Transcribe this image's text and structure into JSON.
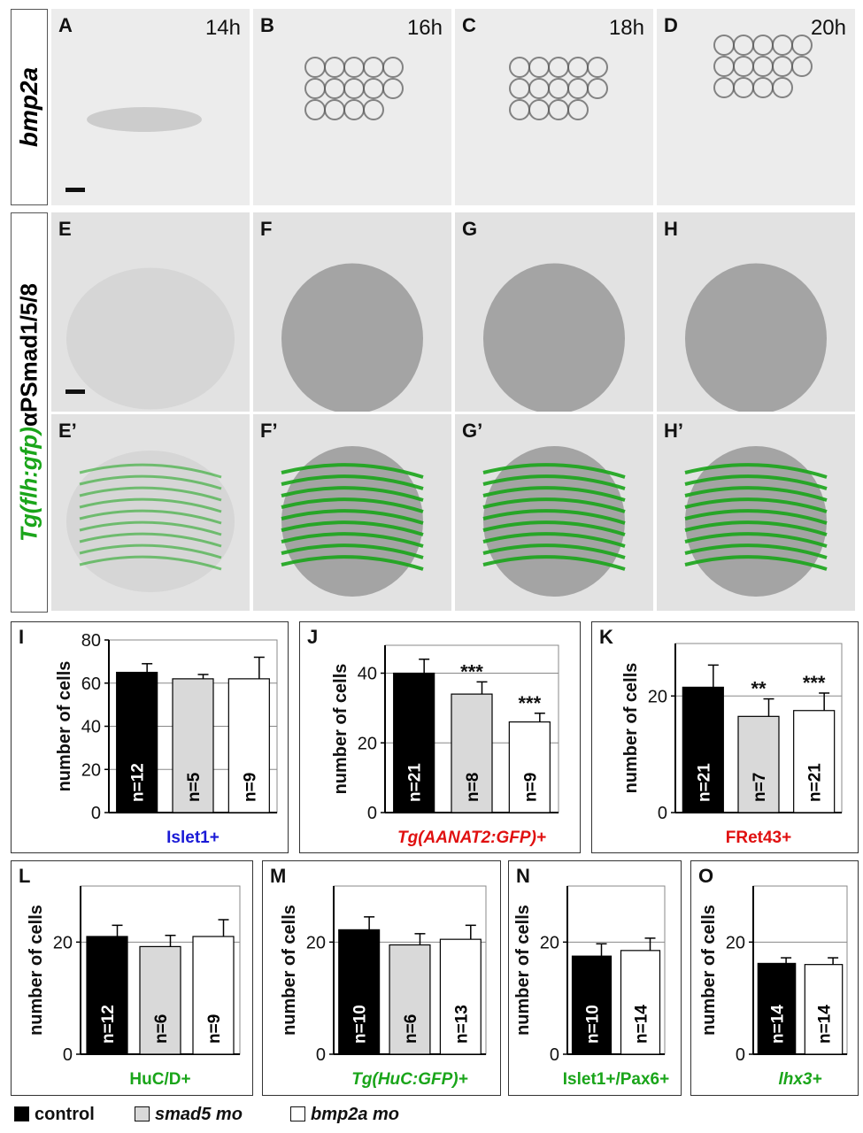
{
  "figure": {
    "row1_label": "bmp2a",
    "row2_label_gfp": "Tg(flh:gfp)",
    "row2_label_alpha": "α",
    "row2_label_ab": "PSmad1/5/8",
    "micro_panels": [
      {
        "letter": "A",
        "time": "14h"
      },
      {
        "letter": "B",
        "time": "16h"
      },
      {
        "letter": "C",
        "time": "18h"
      },
      {
        "letter": "D",
        "time": "20h"
      },
      {
        "letter": "E",
        "time": ""
      },
      {
        "letter": "F",
        "time": ""
      },
      {
        "letter": "G",
        "time": ""
      },
      {
        "letter": "H",
        "time": ""
      },
      {
        "letter": "E’",
        "time": ""
      },
      {
        "letter": "F’",
        "time": ""
      },
      {
        "letter": "G’",
        "time": ""
      },
      {
        "letter": "H’",
        "time": ""
      }
    ],
    "colors": {
      "green": "#1aa51a",
      "blue": "#1a1ad6",
      "red": "#e01010",
      "control": "#000000",
      "smad5": "#d9d9d9",
      "bmp2a": "#ffffff"
    },
    "legend": [
      {
        "label": "control",
        "color": "#000000"
      },
      {
        "label": "smad5 mo",
        "color": "#d9d9d9"
      },
      {
        "label": "bmp2a mo",
        "color": "#ffffff"
      }
    ]
  },
  "chart_data": [
    {
      "panel": "I",
      "type": "bar",
      "ylabel": "number of cells",
      "xlabel": "Islet1+",
      "xlabel_color": "#1a1ad6",
      "xlabel_italic": false,
      "ylim": [
        0,
        80
      ],
      "yticks": [
        0,
        20,
        40,
        60,
        80
      ],
      "gridlines": [
        20,
        40,
        60,
        80
      ],
      "categories": [
        "control",
        "smad5 mo",
        "bmp2a mo"
      ],
      "values": [
        65,
        62,
        62
      ],
      "errors": [
        4,
        2,
        10
      ],
      "n_labels": [
        "n=12",
        "n=5",
        "n=9"
      ],
      "significance": [
        "",
        "",
        ""
      ]
    },
    {
      "panel": "J",
      "type": "bar",
      "ylabel": "number of cells",
      "xlabel": "Tg(AANAT2:GFP)+",
      "xlabel_color": "#e01010",
      "xlabel_italic": true,
      "ylim": [
        0,
        48
      ],
      "yticks": [
        0,
        20,
        40
      ],
      "gridlines": [
        20,
        40
      ],
      "categories": [
        "control",
        "smad5 mo",
        "bmp2a mo"
      ],
      "values": [
        40,
        34,
        26
      ],
      "errors": [
        4,
        3.5,
        2.5
      ],
      "n_labels": [
        "n=21",
        "n=8",
        "n=9"
      ],
      "significance": [
        "",
        "***",
        "***"
      ]
    },
    {
      "panel": "K",
      "type": "bar",
      "ylabel": "number of cells",
      "xlabel": "FRet43+",
      "xlabel_color": "#e01010",
      "xlabel_italic": false,
      "ylim": [
        0,
        29
      ],
      "yticks": [
        0,
        20
      ],
      "gridlines": [
        20
      ],
      "categories": [
        "control",
        "smad5 mo",
        "bmp2a mo"
      ],
      "values": [
        21.5,
        16.5,
        17.5
      ],
      "errors": [
        3.8,
        3,
        3
      ],
      "n_labels": [
        "n=21",
        "n=7",
        "n=21"
      ],
      "significance": [
        "",
        "**",
        "***"
      ]
    },
    {
      "panel": "L",
      "type": "bar",
      "ylabel": "number of cells",
      "xlabel": "HuC/D+",
      "xlabel_color": "#1aa51a",
      "xlabel_italic": false,
      "ylim": [
        0,
        30
      ],
      "yticks": [
        0,
        20
      ],
      "gridlines": [
        20
      ],
      "categories": [
        "control",
        "smad5 mo",
        "bmp2a mo"
      ],
      "values": [
        21,
        19.2,
        21
      ],
      "errors": [
        2,
        2,
        3
      ],
      "n_labels": [
        "n=12",
        "n=6",
        "n=9"
      ],
      "significance": [
        "",
        "",
        ""
      ]
    },
    {
      "panel": "M",
      "type": "bar",
      "ylabel": "number of cells",
      "xlabel": "Tg(HuC:GFP)+",
      "xlabel_color": "#1aa51a",
      "xlabel_italic": true,
      "ylim": [
        0,
        30
      ],
      "yticks": [
        0,
        20
      ],
      "gridlines": [
        20
      ],
      "categories": [
        "control",
        "smad5 mo",
        "bmp2a mo"
      ],
      "values": [
        22.2,
        19.5,
        20.5
      ],
      "errors": [
        2.3,
        2,
        2.5
      ],
      "n_labels": [
        "n=10",
        "n=6",
        "n=13"
      ],
      "significance": [
        "",
        "",
        ""
      ]
    },
    {
      "panel": "N",
      "type": "bar",
      "ylabel": "number of cells",
      "xlabel": "Islet1+/Pax6+",
      "xlabel_color": "#1aa51a",
      "xlabel_italic": false,
      "ylim": [
        0,
        30
      ],
      "yticks": [
        0,
        20
      ],
      "gridlines": [
        20
      ],
      "categories": [
        "control",
        "bmp2a mo"
      ],
      "values": [
        17.5,
        18.5
      ],
      "errors": [
        2.2,
        2.2
      ],
      "n_labels": [
        "n=10",
        "n=14"
      ],
      "significance": [
        "",
        ""
      ]
    },
    {
      "panel": "O",
      "type": "bar",
      "ylabel": "number of cells",
      "xlabel": "lhx3+",
      "xlabel_color": "#1aa51a",
      "xlabel_italic": true,
      "ylim": [
        0,
        30
      ],
      "yticks": [
        0,
        20
      ],
      "gridlines": [
        20
      ],
      "categories": [
        "control",
        "bmp2a mo"
      ],
      "values": [
        16.2,
        16
      ],
      "errors": [
        1,
        1.2
      ],
      "n_labels": [
        "n=14",
        "n=14"
      ],
      "significance": [
        "",
        ""
      ]
    }
  ]
}
